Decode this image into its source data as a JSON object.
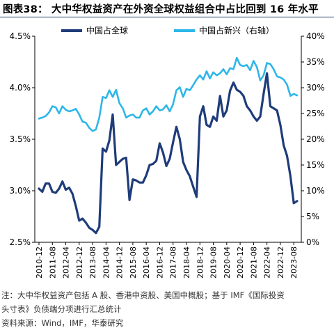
{
  "title": "图表38：  大中华权益资产在外资全球权益组合中占比回到 16 年水平",
  "notes": {
    "line1": "注：大中华权益资产包括 A 股、香港中资股、美国中概股；基于 IMF《国际投资",
    "line2": "头寸表》负债端分项进行汇总统计",
    "source": "资料来源：Wind，IMF，华泰研究"
  },
  "chart_data": {
    "type": "line",
    "x": [
      "2010-12",
      "2011-02",
      "2011-04",
      "2011-06",
      "2011-08",
      "2011-10",
      "2011-12",
      "2012-02",
      "2012-04",
      "2012-06",
      "2012-08",
      "2012-10",
      "2012-12",
      "2013-02",
      "2013-04",
      "2013-06",
      "2013-08",
      "2013-10",
      "2013-12",
      "2014-02",
      "2014-04",
      "2014-06",
      "2014-08",
      "2014-10",
      "2014-12",
      "2015-02",
      "2015-04",
      "2015-06",
      "2015-08",
      "2015-10",
      "2015-12",
      "2016-02",
      "2016-04",
      "2016-06",
      "2016-08",
      "2016-10",
      "2016-12",
      "2017-02",
      "2017-04",
      "2017-06",
      "2017-08",
      "2017-10",
      "2017-12",
      "2018-02",
      "2018-04",
      "2018-06",
      "2018-08",
      "2018-10",
      "2018-12",
      "2019-02",
      "2019-04",
      "2019-06",
      "2019-08",
      "2019-10",
      "2019-12",
      "2020-02",
      "2020-04",
      "2020-06",
      "2020-08",
      "2020-10",
      "2020-12",
      "2021-02",
      "2021-04",
      "2021-06",
      "2021-08",
      "2021-10",
      "2021-12",
      "2022-02",
      "2022-04",
      "2022-06",
      "2022-08",
      "2022-10",
      "2022-12",
      "2023-02",
      "2023-04",
      "2023-06",
      "2023-08",
      "2023-10"
    ],
    "x_ticks": [
      "2010-12",
      "2011-08",
      "2012-04",
      "2012-12",
      "2013-08",
      "2014-04",
      "2014-12",
      "2015-08",
      "2016-04",
      "2016-12",
      "2017-08",
      "2018-04",
      "2018-12",
      "2019-08",
      "2020-04",
      "2020-12",
      "2021-08",
      "2022-04",
      "2022-12",
      "2023-08"
    ],
    "series": [
      {
        "name": "中国占全球",
        "axis": "left",
        "color": "#1f3c7a",
        "values": [
          3.02,
          2.99,
          3.07,
          3.07,
          2.99,
          2.98,
          3.02,
          3.09,
          3.01,
          3.03,
          2.97,
          2.85,
          2.71,
          2.73,
          2.69,
          2.64,
          2.62,
          2.59,
          2.65,
          3.41,
          3.38,
          3.49,
          3.74,
          3.25,
          3.28,
          3.31,
          3.32,
          2.91,
          3.11,
          3.1,
          3.08,
          3.08,
          3.15,
          3.25,
          3.26,
          3.29,
          3.46,
          3.37,
          3.24,
          3.31,
          3.47,
          3.62,
          3.5,
          3.28,
          3.2,
          3.14,
          3.04,
          2.94,
          3.72,
          3.82,
          3.64,
          3.62,
          3.72,
          3.68,
          3.92,
          3.72,
          3.78,
          3.97,
          4.05,
          3.98,
          3.96,
          3.92,
          3.82,
          3.78,
          3.72,
          3.68,
          3.72,
          3.94,
          4.14,
          3.82,
          3.8,
          3.78,
          3.64,
          3.44,
          3.34,
          3.14,
          2.88,
          2.9
        ]
      },
      {
        "name": "中国占新兴（右轴）",
        "axis": "right",
        "color": "#2eb6e8",
        "values": [
          24.0,
          24.2,
          24.5,
          25.2,
          26.4,
          26.2,
          25.0,
          26.4,
          25.7,
          25.4,
          25.6,
          25.9,
          24.8,
          23.4,
          23.2,
          22.2,
          21.6,
          21.9,
          24.2,
          28.2,
          28.0,
          29.5,
          28.2,
          29.6,
          27.0,
          26.0,
          24.2,
          24.6,
          24.8,
          24.2,
          24.2,
          25.6,
          26.0,
          24.8,
          25.4,
          26.4,
          25.6,
          25.8,
          26.6,
          25.4,
          26.8,
          29.5,
          30.1,
          28.2,
          29.8,
          29.5,
          30.5,
          31.6,
          32.4,
          31.6,
          33.2,
          31.8,
          33.0,
          32.4,
          32.8,
          33.6,
          32.6,
          33.8,
          33.6,
          35.8,
          34.4,
          34.2,
          34.4,
          33.4,
          35.2,
          34.0,
          31.4,
          32.4,
          34.8,
          34.6,
          33.6,
          32.2,
          32.0,
          31.6,
          30.6,
          28.4,
          28.8,
          28.5
        ]
      }
    ],
    "y_left": {
      "min": 2.5,
      "max": 4.5,
      "step": 0.5,
      "ticks": [
        "2.5%",
        "3.0%",
        "3.5%",
        "4.0%",
        "4.5%"
      ]
    },
    "y_right": {
      "min": 0,
      "max": 40,
      "step": 5,
      "ticks": [
        "0%",
        "5%",
        "10%",
        "15%",
        "20%",
        "25%",
        "30%",
        "35%",
        "40%"
      ]
    },
    "legend": {
      "position": "top"
    },
    "grid": false
  }
}
